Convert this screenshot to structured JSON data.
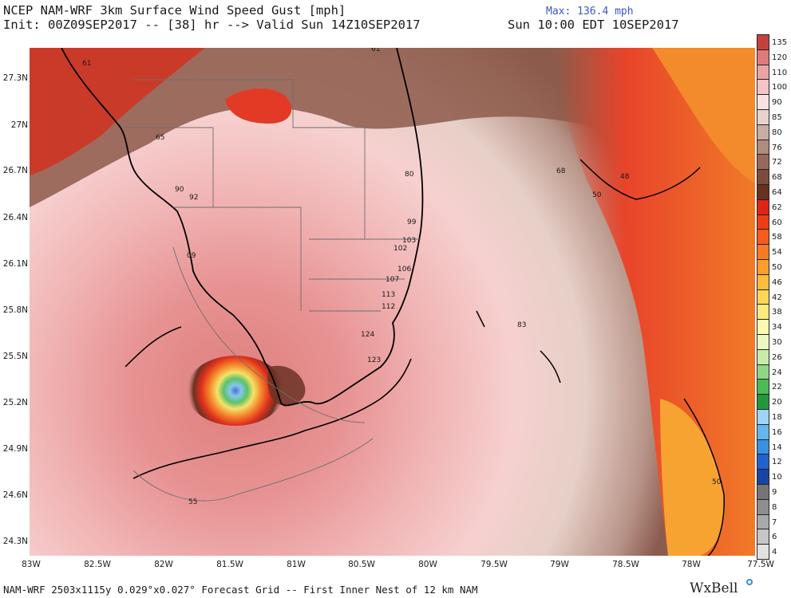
{
  "header": {
    "title": "NCEP NAM-WRF 3km Surface Wind Speed Gust [mph]",
    "init_line": "Init: 00Z09SEP2017 -- [38] hr --> Valid Sun 14Z10SEP2017",
    "max_label": "Max: 136.4 mph",
    "valid_local": "Sun 10:00 EDT 10SEP2017"
  },
  "axes": {
    "lat_labels": [
      "27.3N",
      "27N",
      "26.7N",
      "26.4N",
      "26.1N",
      "25.8N",
      "25.5N",
      "25.2N",
      "24.9N",
      "24.6N",
      "24.3N"
    ],
    "lon_labels": [
      "83W",
      "82.5W",
      "82W",
      "81.5W",
      "81W",
      "80.5W",
      "80W",
      "79.5W",
      "79W",
      "78.5W",
      "78W",
      "77.5W"
    ]
  },
  "map_annotations": [
    {
      "text": "61"
    },
    {
      "text": "61"
    },
    {
      "text": "65"
    },
    {
      "text": "90"
    },
    {
      "text": "92"
    },
    {
      "text": "80"
    },
    {
      "text": "68"
    },
    {
      "text": "48"
    },
    {
      "text": "50"
    },
    {
      "text": "99"
    },
    {
      "text": "103"
    },
    {
      "text": "102"
    },
    {
      "text": "09"
    },
    {
      "text": "106"
    },
    {
      "text": "107"
    },
    {
      "text": "113"
    },
    {
      "text": "112"
    },
    {
      "text": "124"
    },
    {
      "text": "123"
    },
    {
      "text": "83"
    },
    {
      "text": "50"
    },
    {
      "text": "55"
    }
  ],
  "legend": {
    "levels": [
      "135",
      "120",
      "110",
      "100",
      "90",
      "85",
      "80",
      "76",
      "72",
      "68",
      "64",
      "62",
      "60",
      "58",
      "54",
      "50",
      "46",
      "42",
      "38",
      "34",
      "30",
      "26",
      "24",
      "22",
      "20",
      "18",
      "16",
      "14",
      "12",
      "10",
      "9",
      "8",
      "7",
      "6",
      "4"
    ],
    "colors": [
      "#c8403a",
      "#dd7b7b",
      "#eca3a3",
      "#f4c5c5",
      "#fbe2e2",
      "#e8d3cc",
      "#c9ada2",
      "#b08b7e",
      "#97695b",
      "#7d4b3c",
      "#68311f",
      "#dd2415",
      "#ee3d13",
      "#f85a1a",
      "#fb7b20",
      "#fd9d2a",
      "#ffbb3a",
      "#ffd753",
      "#ffeb78",
      "#fff8b0",
      "#ecf8c2",
      "#c6ecaa",
      "#8fd785",
      "#4cbb55",
      "#21983a",
      "#9ed4f5",
      "#66b6ee",
      "#3991e1",
      "#2163cc",
      "#1945a4",
      "#757575",
      "#8e8e8e",
      "#a9a9a9",
      "#c6c6c6",
      "#e2e2e2"
    ]
  },
  "footer": {
    "grid_info": "NAM-WRF 2503x1115y 0.029°x0.027° Forecast Grid -- First Inner Nest of 12 km NAM",
    "brand": "WxBell"
  }
}
